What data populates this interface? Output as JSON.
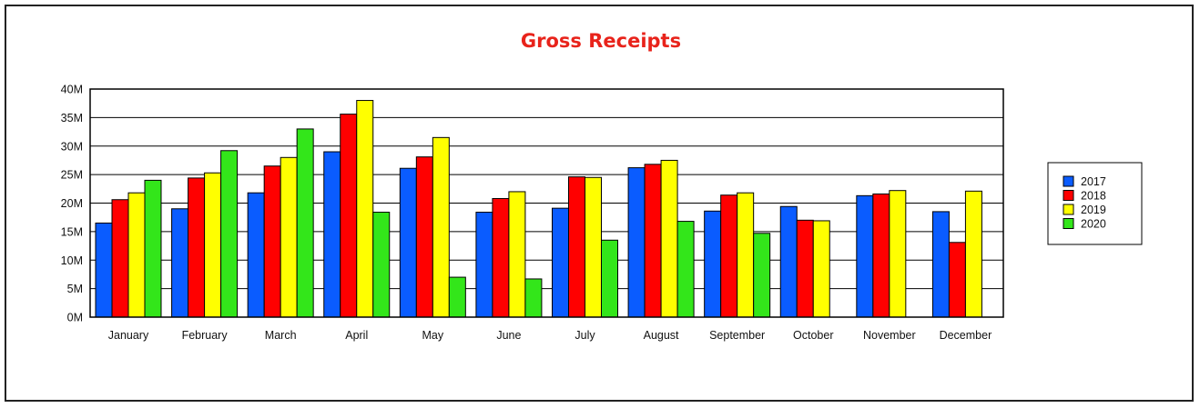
{
  "chart_data": {
    "type": "bar",
    "title": "Gross Receipts",
    "xlabel": "",
    "ylabel": "",
    "ylim": [
      0,
      40
    ],
    "yticks": [
      0,
      5,
      10,
      15,
      20,
      25,
      30,
      35,
      40
    ],
    "ytick_labels": [
      "0M",
      "5M",
      "10M",
      "15M",
      "20M",
      "25M",
      "30M",
      "35M",
      "40M"
    ],
    "grid": true,
    "legend_position": "right",
    "categories": [
      "January",
      "February",
      "March",
      "April",
      "May",
      "June",
      "July",
      "August",
      "September",
      "October",
      "November",
      "December"
    ],
    "series": [
      {
        "name": "2017",
        "color": "#0a5cff",
        "values": [
          16.5,
          19.0,
          21.8,
          29.0,
          26.1,
          18.4,
          19.1,
          26.2,
          18.6,
          19.4,
          21.3,
          18.5
        ]
      },
      {
        "name": "2018",
        "color": "#ff0000",
        "values": [
          20.6,
          24.4,
          26.5,
          35.6,
          28.1,
          20.8,
          24.6,
          26.8,
          21.4,
          17.0,
          21.6,
          13.1
        ]
      },
      {
        "name": "2019",
        "color": "#ffff00",
        "values": [
          21.8,
          25.3,
          28.0,
          38.0,
          31.5,
          22.0,
          24.5,
          27.5,
          21.8,
          16.9,
          22.2,
          22.1
        ]
      },
      {
        "name": "2020",
        "color": "#33e61a",
        "values": [
          24.0,
          29.2,
          33.0,
          18.4,
          7.0,
          6.7,
          13.5,
          16.8,
          14.7,
          0,
          0,
          0
        ]
      }
    ]
  }
}
